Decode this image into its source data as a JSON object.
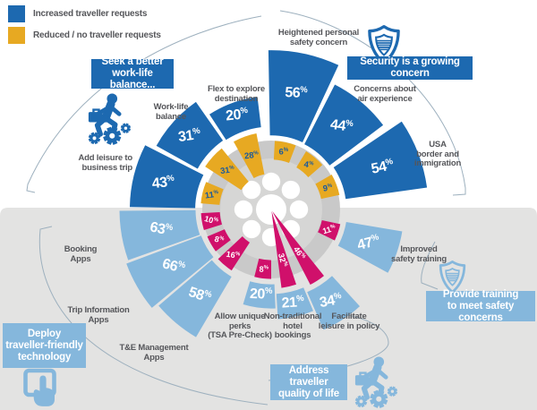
{
  "legend": {
    "items": [
      {
        "label": "Increased traveller requests",
        "color": "#1d69b0"
      },
      {
        "label": "Reduced / no traveller requests",
        "color": "#e7a922"
      }
    ]
  },
  "callouts": [
    {
      "id": "work-life-balance",
      "text": "Seek a better\nwork-life balance...",
      "color": "#1d69b0"
    },
    {
      "id": "security",
      "text": "Security is a growing concern",
      "color": "#1d69b0"
    },
    {
      "id": "technology",
      "text": "Deploy\ntraveller-friendly\ntechnology",
      "color": "#85b7dc"
    },
    {
      "id": "training",
      "text": "Provide training\nto meet safety concerns",
      "color": "#85b7dc"
    },
    {
      "id": "quality-of-life",
      "text": "Address traveller\nquality of life",
      "color": "#85b7dc"
    }
  ],
  "icons": {
    "work_life": "businessperson-climbing-gears-icon",
    "security": "shield-icon",
    "technology": "touch-screen-icon",
    "training": "shield-icon",
    "quality": "businessperson-climbing-gears-icon"
  },
  "colors": {
    "increased_blue": "#1d69b0",
    "reduced_yellow": "#e7a922",
    "bottom_blue": "#85b7dc",
    "bottom_magenta": "#d0106b",
    "bottom_background": "#e3e3e2",
    "donut_outer": "#c9c9c9",
    "donut_inner": "#d6d6d5",
    "connector_line": "#9db0be",
    "label_text": "#55565a"
  },
  "chart_data": {
    "type": "radial-bar",
    "unit": "%",
    "top_half": {
      "theme": "traveller requests",
      "increased_color": "#1d69b0",
      "reduced_color": "#e7a922",
      "spokes": [
        {
          "label": "Add leisure to\nbusiness trip",
          "increased_pct": 43,
          "reduced_pct": 11
        },
        {
          "label": "Work-life\nbalance",
          "increased_pct": 31,
          "reduced_pct": 31
        },
        {
          "label": "Flex to explore\ndestination",
          "increased_pct": 20,
          "reduced_pct": 28
        },
        {
          "label": "Heightened personal\nsafety concern",
          "increased_pct": 56,
          "reduced_pct": 6
        },
        {
          "label": "Concerns about\nair experience",
          "increased_pct": 44,
          "reduced_pct": 4
        },
        {
          "label": "USA\nborder and\nimmigration",
          "increased_pct": 54,
          "reduced_pct": 9
        }
      ]
    },
    "bottom_half": {
      "theme": "travel programme actions",
      "primary_color": "#85b7dc",
      "secondary_color": "#d0106b",
      "spokes": [
        {
          "label": "Booking\nApps",
          "primary_pct": 63,
          "secondary_pct": 10
        },
        {
          "label": "Trip Information\nApps",
          "primary_pct": 66,
          "secondary_pct": 8
        },
        {
          "label": "T&E Management\nApps",
          "primary_pct": 58,
          "secondary_pct": 16
        },
        {
          "label": "Allow unique\nperks\n(TSA Pre-Check)",
          "primary_pct": 20,
          "secondary_pct": 8
        },
        {
          "label": "Non-traditional\nhotel\nbookings",
          "primary_pct": 21,
          "secondary_pct": 32
        },
        {
          "label": "Facilitate\nleisure in policy",
          "primary_pct": 34,
          "secondary_pct": 46
        },
        {
          "label": "Improved\nsafety training",
          "primary_pct": 47,
          "secondary_pct": 11
        }
      ]
    }
  }
}
